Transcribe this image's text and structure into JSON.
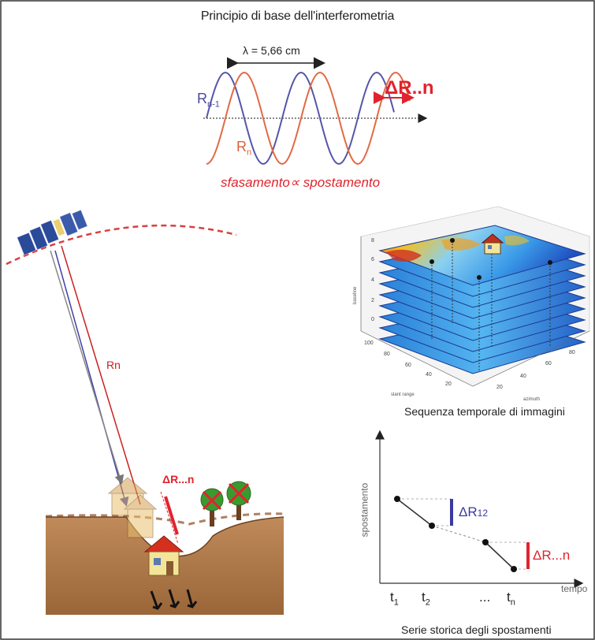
{
  "title": "Principio di base dell'interferometria",
  "wave": {
    "lambda_label": "λ = 5,66 cm",
    "rn1_main": "R",
    "rn1_sub": "n-1",
    "rn_main": "R",
    "rn_sub": "n",
    "delta_label": "ΔR..n",
    "formula": "sfasamento∝ spostamento"
  },
  "ground": {
    "beam_label": "Rn",
    "delta_label": "ΔR...n"
  },
  "cube": {
    "caption": "Sequenza temporale di immagini",
    "z_ticks": [
      "0",
      "2",
      "4",
      "6",
      "8"
    ],
    "x_ticks": [
      "100",
      "80",
      "60",
      "40",
      "20"
    ],
    "y_ticks": [
      "20",
      "40",
      "60",
      "80"
    ]
  },
  "timeseries": {
    "caption": "Serie storica degli spostamenti",
    "ylabel": "spostamento",
    "xlabel": "tempo",
    "delta12_main": "ΔR",
    "delta12_sub": "12",
    "deltan_label": "ΔR...n",
    "ticks": [
      {
        "main": "t",
        "sub": "1"
      },
      {
        "main": "t",
        "sub": "2"
      },
      {
        "main": "...",
        "sub": ""
      },
      {
        "main": "t",
        "sub": "n"
      }
    ]
  },
  "colors": {
    "blue_wave": "#5555aa",
    "red_wave": "#e06a44",
    "accent_red": "#e0242e",
    "accent_blue": "#3a3aa0"
  }
}
